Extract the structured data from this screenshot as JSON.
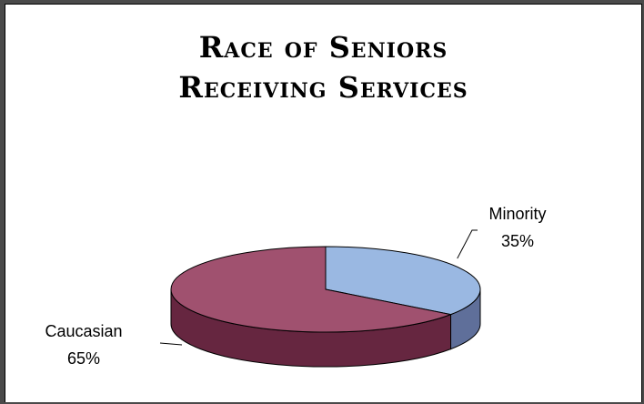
{
  "chart_data": {
    "type": "pie",
    "title": "Race of Seniors Receiving Services",
    "title_lines": [
      "Race of Seniors",
      "Receiving Services"
    ],
    "categories": [
      "Minority",
      "Caucasian"
    ],
    "values": [
      35,
      65
    ],
    "labels": [
      {
        "name": "Minority",
        "value": "35%"
      },
      {
        "name": "Caucasian",
        "value": "65%"
      }
    ],
    "colors": {
      "Minority": "#9ab8e2",
      "Minority_side": "#5f6f9a",
      "Caucasian": "#a0516f",
      "Caucasian_side": "#662640"
    },
    "style": "3d",
    "legend": "none"
  }
}
